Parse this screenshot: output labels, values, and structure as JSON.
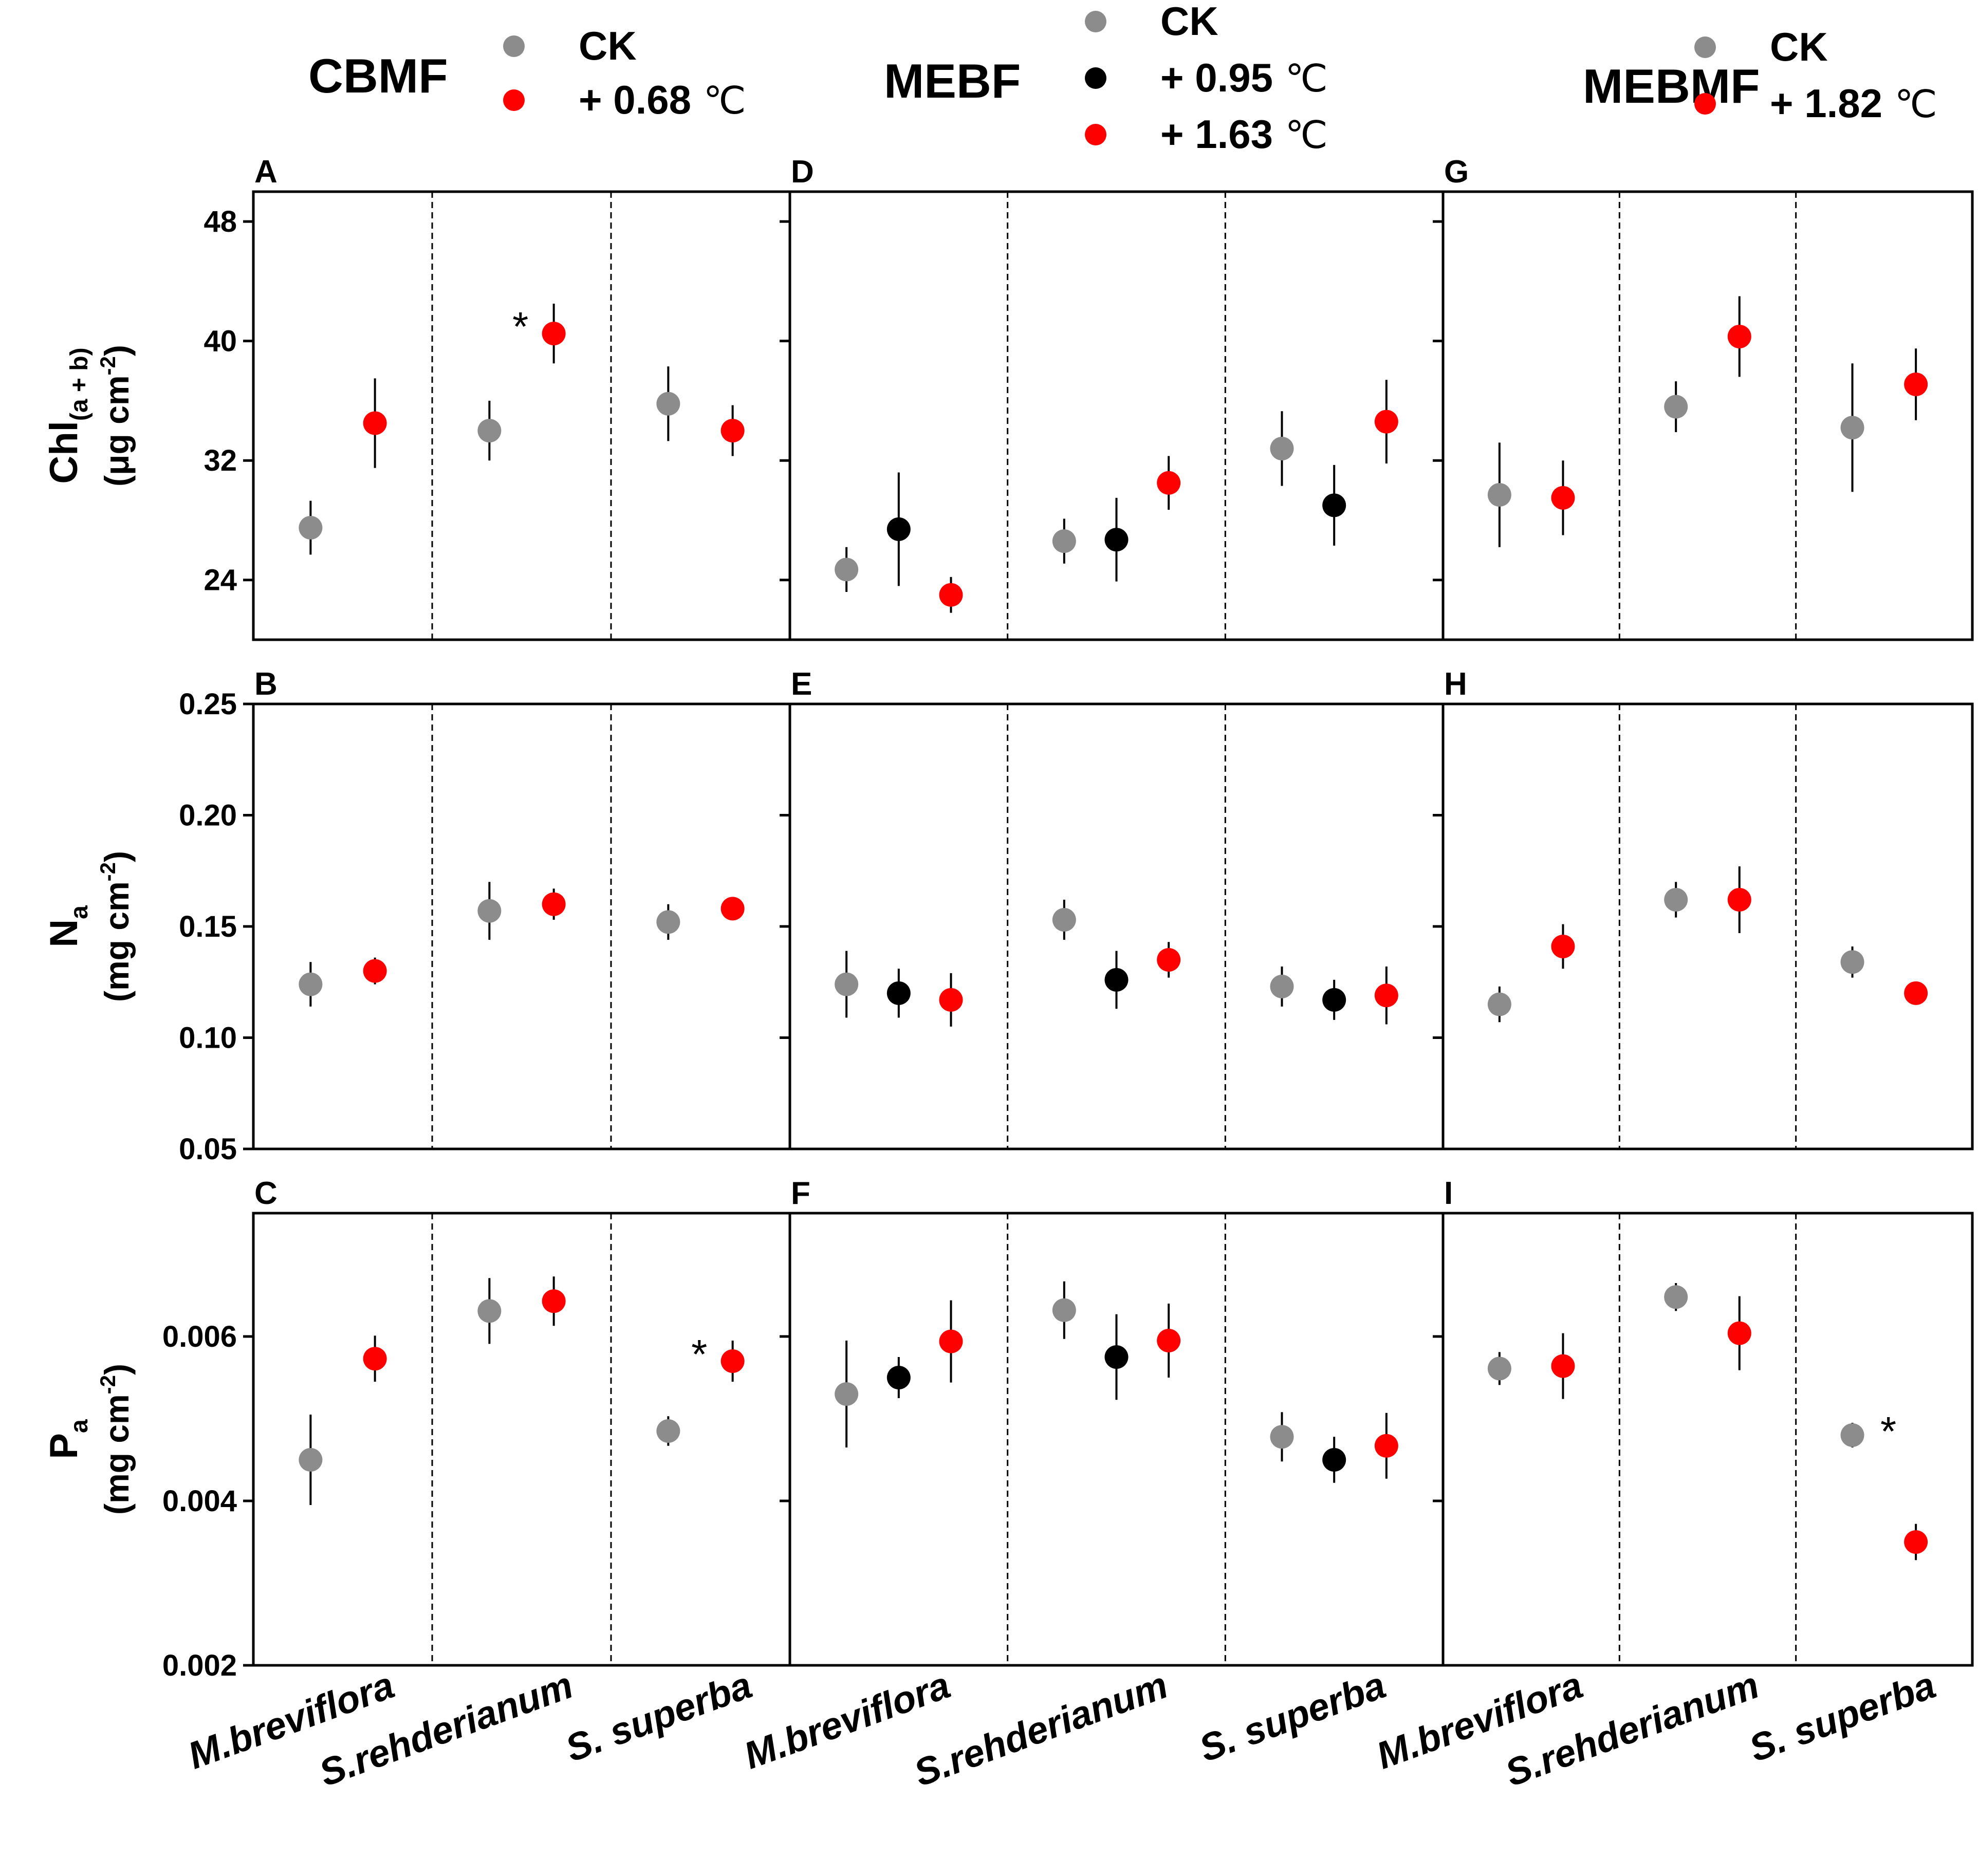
{
  "chart_data": {
    "type": "scatter",
    "species": [
      "M.breviflora",
      "S.rehderianum",
      "S. superba"
    ],
    "units": {
      "celsius": "℃"
    },
    "colors": {
      "CK": "#8c8c8c",
      "t95": "#000000",
      "red": "#ff0000",
      "axis": "#000000",
      "bg": "#ffffff"
    },
    "columns": [
      {
        "id": "CBMF",
        "title": "CBMF",
        "legend": [
          {
            "label": "CK",
            "color": "#8c8c8c"
          },
          {
            "label": "+ 0.68",
            "unit": "℃",
            "color": "#ff0000"
          }
        ]
      },
      {
        "id": "MEBF",
        "title": "MEBF",
        "legend": [
          {
            "label": "CK",
            "color": "#8c8c8c"
          },
          {
            "label": "+ 0.95",
            "unit": "℃",
            "color": "#000000"
          },
          {
            "label": "+ 1.63",
            "unit": "℃",
            "color": "#ff0000"
          }
        ]
      },
      {
        "id": "MEBMF",
        "title": "MEBMF",
        "legend": [
          {
            "label": "CK",
            "color": "#8c8c8c"
          },
          {
            "label": "+ 1.82",
            "unit": "℃",
            "color": "#ff0000"
          }
        ]
      }
    ],
    "rows": [
      {
        "id": "chl",
        "ylabel_main": "Chl",
        "ylabel_sub": "(a + b)",
        "ylabel_unit": "(μg cm",
        "ylabel_unit_sup": "-2",
        "ylabel_unit_end": ")",
        "ylim": [
          20,
          50
        ],
        "yticks": [
          24,
          32,
          40,
          48
        ],
        "yticklabels": [
          "24",
          "32",
          "40",
          "48"
        ]
      },
      {
        "id": "na",
        "ylabel_main": "N",
        "ylabel_sub": "a",
        "ylabel_unit": "(mg cm",
        "ylabel_unit_sup": "-2",
        "ylabel_unit_end": ")",
        "ylim": [
          0.05,
          0.25
        ],
        "yticks": [
          0.05,
          0.1,
          0.15,
          0.2,
          0.25
        ],
        "yticklabels": [
          "0.05",
          "0.10",
          "0.15",
          "0.20",
          "0.25"
        ]
      },
      {
        "id": "pa",
        "ylabel_main": "P",
        "ylabel_sub": "a",
        "ylabel_unit": "(mg cm",
        "ylabel_unit_sup": "-2",
        "ylabel_unit_end": ")",
        "ylim": [
          0.002,
          0.0075
        ],
        "yticks": [
          0.002,
          0.004,
          0.006
        ],
        "yticklabels": [
          "0.002",
          "0.004",
          "0.006"
        ]
      }
    ],
    "panels": [
      {
        "letter": "A",
        "row": "chl",
        "col": "CBMF",
        "points": [
          {
            "species": 0,
            "treatment": "CK",
            "y": 27.5,
            "err": 1.8
          },
          {
            "species": 0,
            "treatment": "+0.68",
            "y": 34.5,
            "err": 3.0
          },
          {
            "species": 1,
            "treatment": "CK",
            "y": 34.0,
            "err": 2.0
          },
          {
            "species": 1,
            "treatment": "+0.68",
            "y": 40.5,
            "err": 2.0,
            "sig": "*"
          },
          {
            "species": 2,
            "treatment": "CK",
            "y": 35.8,
            "err": 2.5
          },
          {
            "species": 2,
            "treatment": "+0.68",
            "y": 34.0,
            "err": 1.7
          }
        ]
      },
      {
        "letter": "B",
        "row": "na",
        "col": "CBMF",
        "points": [
          {
            "species": 0,
            "treatment": "CK",
            "y": 0.124,
            "err": 0.01
          },
          {
            "species": 0,
            "treatment": "+0.68",
            "y": 0.13,
            "err": 0.006
          },
          {
            "species": 1,
            "treatment": "CK",
            "y": 0.157,
            "err": 0.013
          },
          {
            "species": 1,
            "treatment": "+0.68",
            "y": 0.16,
            "err": 0.007
          },
          {
            "species": 2,
            "treatment": "CK",
            "y": 0.152,
            "err": 0.008
          },
          {
            "species": 2,
            "treatment": "+0.68",
            "y": 0.158,
            "err": 0.005
          }
        ]
      },
      {
        "letter": "C",
        "row": "pa",
        "col": "CBMF",
        "points": [
          {
            "species": 0,
            "treatment": "CK",
            "y": 0.0045,
            "err": 0.00055
          },
          {
            "species": 0,
            "treatment": "+0.68",
            "y": 0.00573,
            "err": 0.00028
          },
          {
            "species": 1,
            "treatment": "CK",
            "y": 0.00631,
            "err": 0.0004
          },
          {
            "species": 1,
            "treatment": "+0.68",
            "y": 0.00643,
            "err": 0.0003
          },
          {
            "species": 2,
            "treatment": "CK",
            "y": 0.00485,
            "err": 0.00018
          },
          {
            "species": 2,
            "treatment": "+0.68",
            "y": 0.0057,
            "err": 0.00025,
            "sig": "*"
          }
        ]
      },
      {
        "letter": "D",
        "row": "chl",
        "col": "MEBF",
        "points": [
          {
            "species": 0,
            "treatment": "CK",
            "y": 24.7,
            "err": 1.5
          },
          {
            "species": 0,
            "treatment": "+0.95",
            "y": 27.4,
            "err": 3.8
          },
          {
            "species": 0,
            "treatment": "+1.63",
            "y": 23.0,
            "err": 1.2
          },
          {
            "species": 1,
            "treatment": "CK",
            "y": 26.6,
            "err": 1.5
          },
          {
            "species": 1,
            "treatment": "+0.95",
            "y": 26.7,
            "err": 2.8
          },
          {
            "species": 1,
            "treatment": "+1.63",
            "y": 30.5,
            "err": 1.8
          },
          {
            "species": 2,
            "treatment": "CK",
            "y": 32.8,
            "err": 2.5
          },
          {
            "species": 2,
            "treatment": "+0.95",
            "y": 29.0,
            "err": 2.7
          },
          {
            "species": 2,
            "treatment": "+1.63",
            "y": 34.6,
            "err": 2.8
          }
        ]
      },
      {
        "letter": "E",
        "row": "na",
        "col": "MEBF",
        "points": [
          {
            "species": 0,
            "treatment": "CK",
            "y": 0.124,
            "err": 0.015
          },
          {
            "species": 0,
            "treatment": "+0.95",
            "y": 0.12,
            "err": 0.011
          },
          {
            "species": 0,
            "treatment": "+1.63",
            "y": 0.117,
            "err": 0.012
          },
          {
            "species": 1,
            "treatment": "CK",
            "y": 0.153,
            "err": 0.009
          },
          {
            "species": 1,
            "treatment": "+0.95",
            "y": 0.126,
            "err": 0.013
          },
          {
            "species": 1,
            "treatment": "+1.63",
            "y": 0.135,
            "err": 0.008
          },
          {
            "species": 2,
            "treatment": "CK",
            "y": 0.123,
            "err": 0.009
          },
          {
            "species": 2,
            "treatment": "+0.95",
            "y": 0.117,
            "err": 0.009
          },
          {
            "species": 2,
            "treatment": "+1.63",
            "y": 0.119,
            "err": 0.013
          }
        ]
      },
      {
        "letter": "F",
        "row": "pa",
        "col": "MEBF",
        "points": [
          {
            "species": 0,
            "treatment": "CK",
            "y": 0.0053,
            "err": 0.00065
          },
          {
            "species": 0,
            "treatment": "+0.95",
            "y": 0.0055,
            "err": 0.00025
          },
          {
            "species": 0,
            "treatment": "+1.63",
            "y": 0.00594,
            "err": 0.0005
          },
          {
            "species": 1,
            "treatment": "CK",
            "y": 0.00632,
            "err": 0.00035
          },
          {
            "species": 1,
            "treatment": "+0.95",
            "y": 0.00575,
            "err": 0.00052
          },
          {
            "species": 1,
            "treatment": "+1.63",
            "y": 0.00595,
            "err": 0.00045
          },
          {
            "species": 2,
            "treatment": "CK",
            "y": 0.00478,
            "err": 0.0003
          },
          {
            "species": 2,
            "treatment": "+0.95",
            "y": 0.0045,
            "err": 0.00028
          },
          {
            "species": 2,
            "treatment": "+1.63",
            "y": 0.00467,
            "err": 0.0004
          }
        ]
      },
      {
        "letter": "G",
        "row": "chl",
        "col": "MEBMF",
        "points": [
          {
            "species": 0,
            "treatment": "CK",
            "y": 29.7,
            "err": 3.5
          },
          {
            "species": 0,
            "treatment": "+1.82",
            "y": 29.5,
            "err": 2.5
          },
          {
            "species": 1,
            "treatment": "CK",
            "y": 35.6,
            "err": 1.7
          },
          {
            "species": 1,
            "treatment": "+1.82",
            "y": 40.3,
            "err": 2.7
          },
          {
            "species": 2,
            "treatment": "CK",
            "y": 34.2,
            "err": 4.3
          },
          {
            "species": 2,
            "treatment": "+1.82",
            "y": 37.1,
            "err": 2.4
          }
        ]
      },
      {
        "letter": "H",
        "row": "na",
        "col": "MEBMF",
        "points": [
          {
            "species": 0,
            "treatment": "CK",
            "y": 0.115,
            "err": 0.008
          },
          {
            "species": 0,
            "treatment": "+1.82",
            "y": 0.141,
            "err": 0.01
          },
          {
            "species": 1,
            "treatment": "CK",
            "y": 0.162,
            "err": 0.008
          },
          {
            "species": 1,
            "treatment": "+1.82",
            "y": 0.162,
            "err": 0.015
          },
          {
            "species": 2,
            "treatment": "CK",
            "y": 0.134,
            "err": 0.007
          },
          {
            "species": 2,
            "treatment": "+1.82",
            "y": 0.12,
            "err": 0.004
          }
        ]
      },
      {
        "letter": "I",
        "row": "pa",
        "col": "MEBMF",
        "points": [
          {
            "species": 0,
            "treatment": "CK",
            "y": 0.00561,
            "err": 0.0002
          },
          {
            "species": 0,
            "treatment": "+1.82",
            "y": 0.00564,
            "err": 0.0004
          },
          {
            "species": 1,
            "treatment": "CK",
            "y": 0.00648,
            "err": 0.00017
          },
          {
            "species": 1,
            "treatment": "+1.82",
            "y": 0.00604,
            "err": 0.00045
          },
          {
            "species": 2,
            "treatment": "CK",
            "y": 0.0048,
            "err": 0.00015
          },
          {
            "species": 2,
            "treatment": "+1.82",
            "y": 0.0035,
            "err": 0.00022,
            "sig": "*",
            "sig_on": "CK"
          }
        ]
      }
    ]
  }
}
